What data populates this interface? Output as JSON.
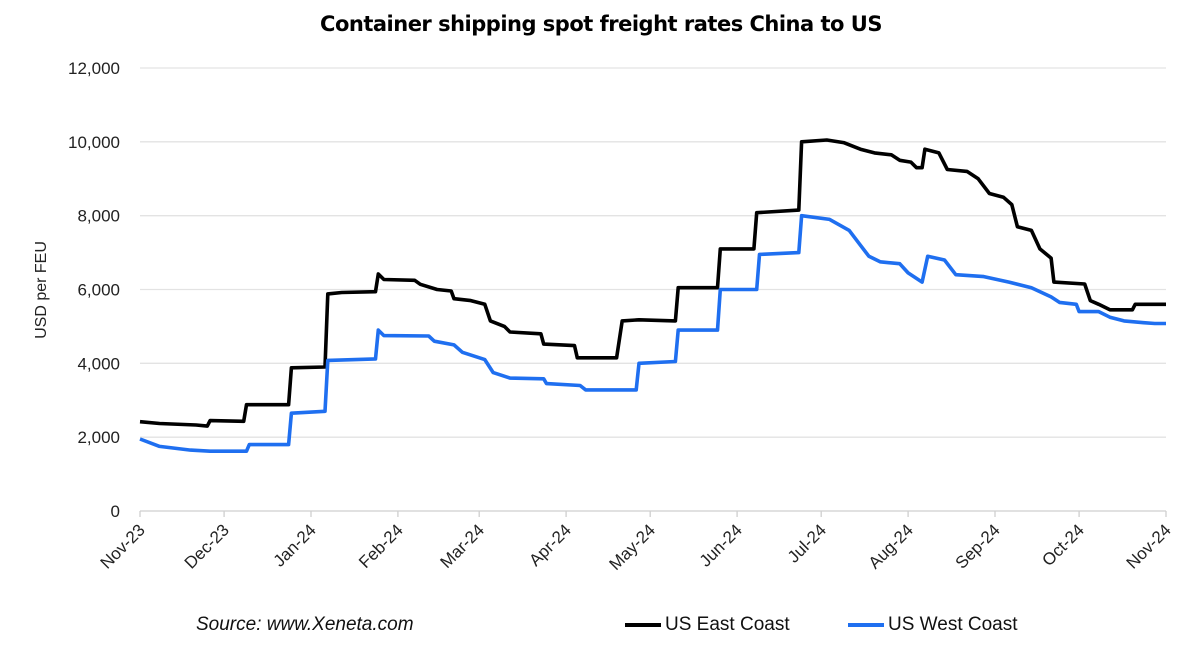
{
  "chart_data": {
    "type": "line",
    "title": "Container shipping spot freight rates China to US",
    "ylabel": "USD per FEU",
    "xlabel": "",
    "ylim": [
      0,
      12000
    ],
    "yticks": [
      "0",
      "2,000",
      "4,000",
      "6,000",
      "8,000",
      "10,000",
      "12,000"
    ],
    "ytick_values": [
      0,
      2000,
      4000,
      6000,
      8000,
      10000,
      12000
    ],
    "xlim": [
      "2023-11-01",
      "2024-11-01"
    ],
    "xticks": [
      {
        "label": "Nov-23",
        "date": "2023-11-01"
      },
      {
        "label": "Dec-23",
        "date": "2023-12-01"
      },
      {
        "label": "Jan-24",
        "date": "2024-01-01"
      },
      {
        "label": "Feb-24",
        "date": "2024-02-01"
      },
      {
        "label": "Mar-24",
        "date": "2024-03-01"
      },
      {
        "label": "Apr-24",
        "date": "2024-04-01"
      },
      {
        "label": "May-24",
        "date": "2024-05-01"
      },
      {
        "label": "Jun-24",
        "date": "2024-06-01"
      },
      {
        "label": "Jul-24",
        "date": "2024-07-01"
      },
      {
        "label": "Aug-24",
        "date": "2024-08-01"
      },
      {
        "label": "Sep-24",
        "date": "2024-09-01"
      },
      {
        "label": "Oct-24",
        "date": "2024-10-01"
      },
      {
        "label": "Nov-24",
        "date": "2024-11-01"
      }
    ],
    "grid": "horizontal",
    "legend_placement": "bottom",
    "series": [
      {
        "name": "US East Coast",
        "color": "#000000",
        "points": [
          [
            "2023-11-01",
            2420
          ],
          [
            "2023-11-08",
            2370
          ],
          [
            "2023-11-21",
            2330
          ],
          [
            "2023-11-25",
            2300
          ],
          [
            "2023-11-26",
            2450
          ],
          [
            "2023-12-08",
            2430
          ],
          [
            "2023-12-09",
            2880
          ],
          [
            "2023-12-24",
            2880
          ],
          [
            "2023-12-25",
            3880
          ],
          [
            "2024-01-06",
            3900
          ],
          [
            "2024-01-07",
            5880
          ],
          [
            "2024-01-12",
            5920
          ],
          [
            "2024-01-24",
            5940
          ],
          [
            "2024-01-25",
            6420
          ],
          [
            "2024-01-27",
            6270
          ],
          [
            "2024-02-07",
            6250
          ],
          [
            "2024-02-09",
            6140
          ],
          [
            "2024-02-15",
            6000
          ],
          [
            "2024-02-20",
            5960
          ],
          [
            "2024-02-21",
            5750
          ],
          [
            "2024-02-27",
            5700
          ],
          [
            "2024-03-03",
            5600
          ],
          [
            "2024-03-05",
            5150
          ],
          [
            "2024-03-10",
            5000
          ],
          [
            "2024-03-12",
            4850
          ],
          [
            "2024-03-23",
            4800
          ],
          [
            "2024-03-24",
            4520
          ],
          [
            "2024-04-04",
            4480
          ],
          [
            "2024-04-05",
            4150
          ],
          [
            "2024-04-19",
            4150
          ],
          [
            "2024-04-21",
            5150
          ],
          [
            "2024-04-27",
            5180
          ],
          [
            "2024-05-10",
            5150
          ],
          [
            "2024-05-11",
            6050
          ],
          [
            "2024-05-25",
            6050
          ],
          [
            "2024-05-26",
            7100
          ],
          [
            "2024-06-07",
            7100
          ],
          [
            "2024-06-08",
            8080
          ],
          [
            "2024-06-23",
            8150
          ],
          [
            "2024-06-24",
            10000
          ],
          [
            "2024-07-03",
            10050
          ],
          [
            "2024-07-09",
            9980
          ],
          [
            "2024-07-15",
            9800
          ],
          [
            "2024-07-20",
            9700
          ],
          [
            "2024-07-26",
            9650
          ],
          [
            "2024-07-29",
            9500
          ],
          [
            "2024-08-02",
            9450
          ],
          [
            "2024-08-04",
            9300
          ],
          [
            "2024-08-06",
            9300
          ],
          [
            "2024-08-07",
            9800
          ],
          [
            "2024-08-12",
            9700
          ],
          [
            "2024-08-15",
            9250
          ],
          [
            "2024-08-22",
            9200
          ],
          [
            "2024-08-26",
            9000
          ],
          [
            "2024-08-30",
            8600
          ],
          [
            "2024-09-04",
            8500
          ],
          [
            "2024-09-07",
            8300
          ],
          [
            "2024-09-09",
            7700
          ],
          [
            "2024-09-14",
            7600
          ],
          [
            "2024-09-17",
            7100
          ],
          [
            "2024-09-21",
            6850
          ],
          [
            "2024-09-22",
            6200
          ],
          [
            "2024-10-03",
            6150
          ],
          [
            "2024-10-05",
            5700
          ],
          [
            "2024-10-08",
            5600
          ],
          [
            "2024-10-12",
            5450
          ],
          [
            "2024-10-20",
            5450
          ],
          [
            "2024-10-21",
            5600
          ],
          [
            "2024-11-01",
            5600
          ]
        ]
      },
      {
        "name": "US West Coast",
        "color": "#1f6ff0",
        "points": [
          [
            "2023-11-01",
            1950
          ],
          [
            "2023-11-08",
            1750
          ],
          [
            "2023-11-19",
            1650
          ],
          [
            "2023-11-26",
            1620
          ],
          [
            "2023-12-09",
            1620
          ],
          [
            "2023-12-10",
            1800
          ],
          [
            "2023-12-24",
            1800
          ],
          [
            "2023-12-25",
            2650
          ],
          [
            "2024-01-06",
            2700
          ],
          [
            "2024-01-07",
            4080
          ],
          [
            "2024-01-24",
            4120
          ],
          [
            "2024-01-25",
            4900
          ],
          [
            "2024-01-27",
            4750
          ],
          [
            "2024-02-12",
            4740
          ],
          [
            "2024-02-14",
            4600
          ],
          [
            "2024-02-21",
            4500
          ],
          [
            "2024-02-24",
            4300
          ],
          [
            "2024-03-03",
            4100
          ],
          [
            "2024-03-06",
            3750
          ],
          [
            "2024-03-12",
            3600
          ],
          [
            "2024-03-24",
            3580
          ],
          [
            "2024-03-25",
            3450
          ],
          [
            "2024-04-06",
            3400
          ],
          [
            "2024-04-08",
            3280
          ],
          [
            "2024-04-26",
            3280
          ],
          [
            "2024-04-27",
            4000
          ],
          [
            "2024-05-10",
            4050
          ],
          [
            "2024-05-11",
            4900
          ],
          [
            "2024-05-25",
            4900
          ],
          [
            "2024-05-26",
            6000
          ],
          [
            "2024-06-08",
            6000
          ],
          [
            "2024-06-09",
            6950
          ],
          [
            "2024-06-23",
            7000
          ],
          [
            "2024-06-24",
            8000
          ],
          [
            "2024-07-04",
            7900
          ],
          [
            "2024-07-11",
            7600
          ],
          [
            "2024-07-15",
            7200
          ],
          [
            "2024-07-18",
            6900
          ],
          [
            "2024-07-22",
            6750
          ],
          [
            "2024-07-29",
            6700
          ],
          [
            "2024-08-01",
            6450
          ],
          [
            "2024-08-06",
            6200
          ],
          [
            "2024-08-08",
            6900
          ],
          [
            "2024-08-14",
            6800
          ],
          [
            "2024-08-18",
            6400
          ],
          [
            "2024-08-28",
            6350
          ],
          [
            "2024-09-06",
            6200
          ],
          [
            "2024-09-14",
            6050
          ],
          [
            "2024-09-21",
            5800
          ],
          [
            "2024-09-24",
            5650
          ],
          [
            "2024-09-30",
            5600
          ],
          [
            "2024-10-01",
            5400
          ],
          [
            "2024-10-08",
            5400
          ],
          [
            "2024-10-12",
            5250
          ],
          [
            "2024-10-17",
            5150
          ],
          [
            "2024-10-24",
            5100
          ],
          [
            "2024-10-28",
            5080
          ],
          [
            "2024-11-01",
            5080
          ]
        ]
      }
    ],
    "source": "Source: www.Xeneta.com"
  }
}
